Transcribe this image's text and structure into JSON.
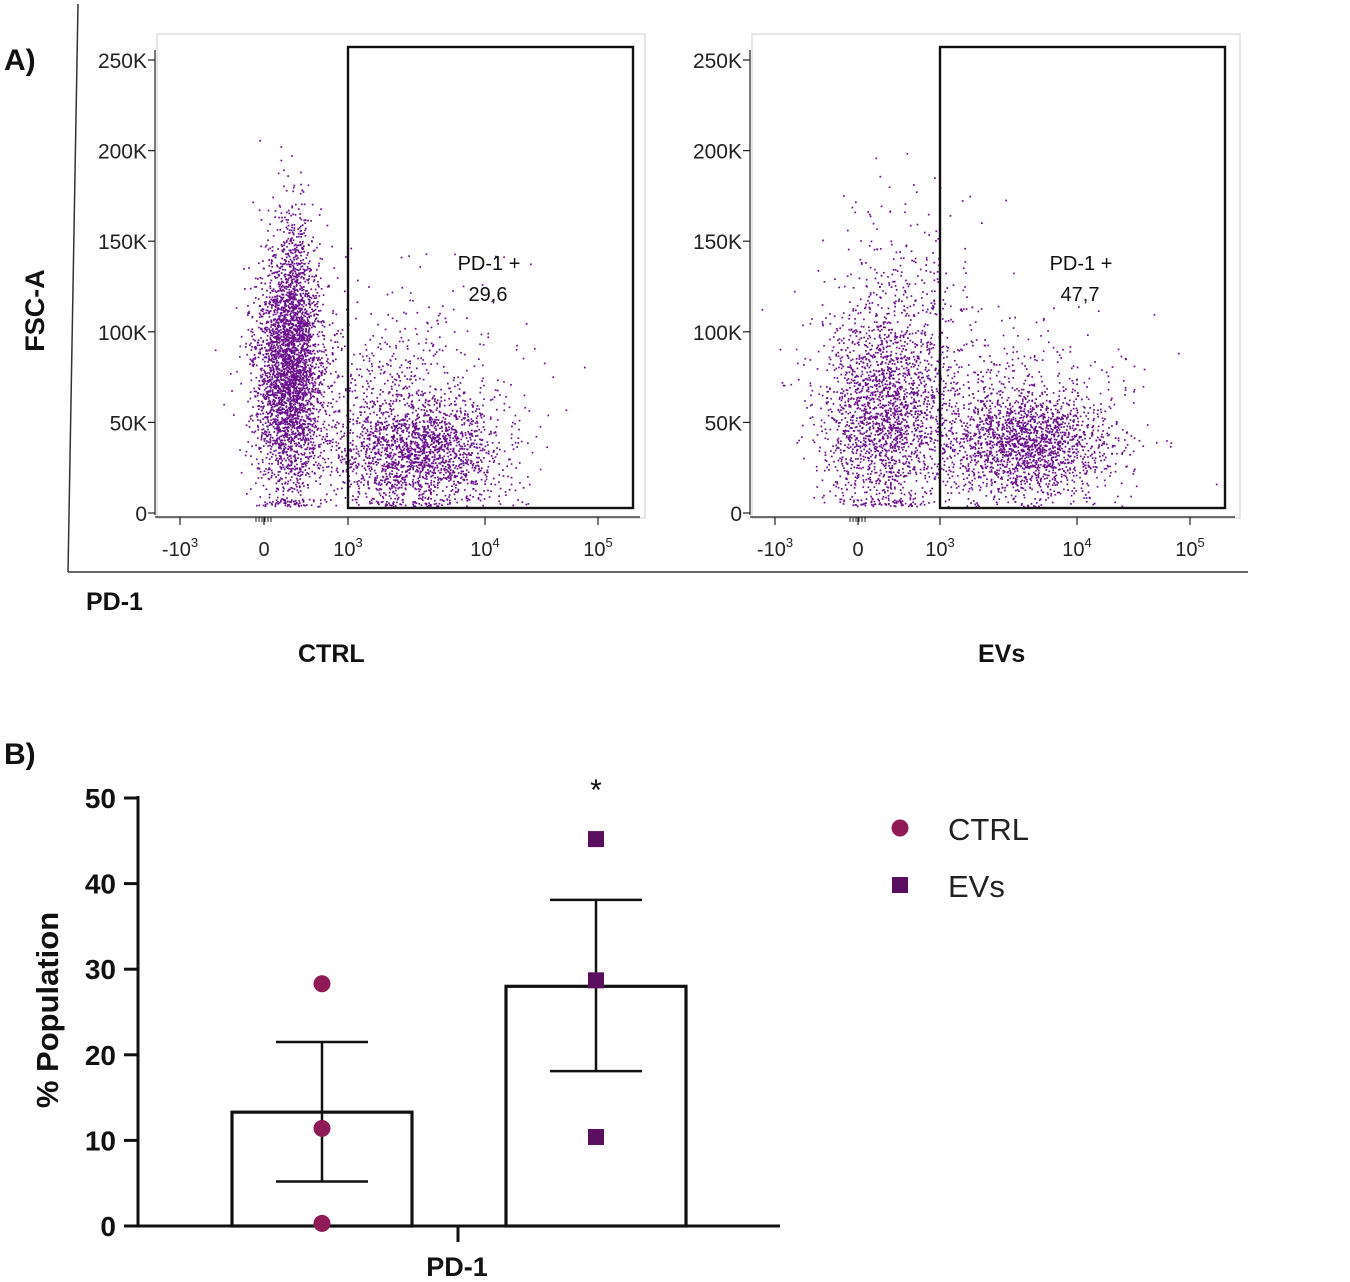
{
  "panel_a_label": "A)",
  "panel_b_label": "B)",
  "flow": {
    "y_axis_title": "FSC-A",
    "x_axis_title": "PD-1",
    "y_ticks": [
      "250K",
      "200K",
      "150K",
      "100K",
      "50K",
      "0"
    ],
    "y_tick_values": [
      250000,
      200000,
      150000,
      100000,
      50000,
      0
    ],
    "x_ticks": [
      {
        "base": "-10",
        "exp": "3"
      },
      {
        "base": "0",
        "exp": ""
      },
      {
        "base": "10",
        "exp": "3"
      },
      {
        "base": "10",
        "exp": "4"
      },
      {
        "base": "10",
        "exp": "5"
      }
    ],
    "gate_label": "PD-1 +",
    "plots": [
      {
        "name": "CTRL",
        "gate_value": "29,6"
      },
      {
        "name": "EVs",
        "gate_value": "47,7"
      }
    ]
  },
  "chart_data": [
    {
      "type": "scatter",
      "title": "CTRL",
      "xlabel": "PD-1",
      "ylabel": "FSC-A",
      "ylim": [
        0,
        250000
      ],
      "gate": {
        "label": "PD-1 +",
        "value": 29.6,
        "x_min": 1000,
        "x_max": 200000,
        "y_min": 0,
        "y_max": 250000
      },
      "populations": [
        {
          "x_center": 0,
          "y_center": 80000,
          "note": "PD-1 negative cluster"
        },
        {
          "x_center": 3000,
          "y_center": 38000,
          "note": "PD-1 positive cluster"
        }
      ]
    },
    {
      "type": "scatter",
      "title": "EVs",
      "xlabel": "PD-1",
      "ylabel": "FSC-A",
      "ylim": [
        0,
        250000
      ],
      "gate": {
        "label": "PD-1 +",
        "value": 47.7,
        "x_min": 1000,
        "x_max": 200000,
        "y_min": 0,
        "y_max": 250000
      },
      "populations": [
        {
          "x_center": 200,
          "y_center": 55000,
          "note": "PD-1 negative cluster"
        },
        {
          "x_center": 4000,
          "y_center": 37000,
          "note": "PD-1 positive cluster"
        }
      ]
    },
    {
      "type": "bar",
      "ylabel": "% Population",
      "xlabel": "PD-1",
      "ylim": [
        0,
        50
      ],
      "yticks": [
        "0",
        "10",
        "20",
        "30",
        "40",
        "50"
      ],
      "categories": [
        "CTRL",
        "EVs"
      ],
      "series": [
        {
          "name": "CTRL",
          "mean": 13.3,
          "sem_low": 5.2,
          "sem_high": 21.5,
          "points": [
            28.3,
            11.4,
            0.3
          ],
          "marker": "circle",
          "color": "#8e1b56"
        },
        {
          "name": "EVs",
          "mean": 28.0,
          "sem_low": 18.1,
          "sem_high": 38.1,
          "points": [
            45.2,
            28.7,
            10.4
          ],
          "marker": "square",
          "color": "#5b0e5e"
        }
      ],
      "annotation": "*",
      "legend": [
        "CTRL",
        "EVs"
      ]
    }
  ],
  "colors": {
    "dots": "#6a0f8e",
    "ctrl": "#8e1b56",
    "evs": "#5b0e5e"
  }
}
